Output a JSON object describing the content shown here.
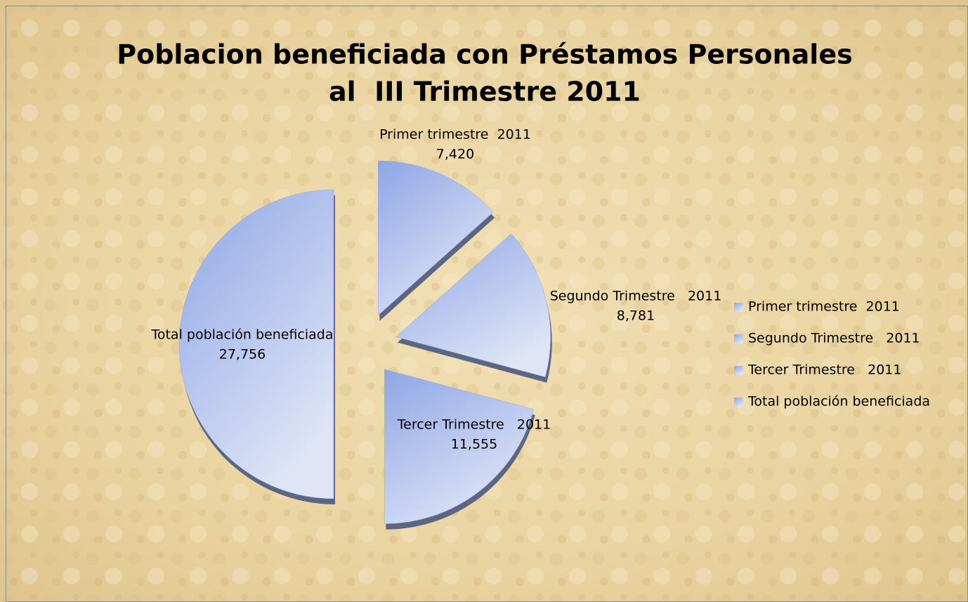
{
  "chart_data": {
    "type": "pie",
    "title": [
      "Poblacion beneficiada con Préstamos Personales",
      "al  III Trimestre 2011"
    ],
    "categories": [
      "Primer trimestre  2011",
      "Segundo Trimestre   2011",
      "Tercer Trimestre   2011",
      "Total población beneficiada"
    ],
    "values": [
      7420,
      8781,
      11555,
      27756
    ],
    "value_labels": [
      "7,420",
      "8,781",
      "11,555",
      "27,756"
    ],
    "color": "#8fa8e8",
    "legend": "right"
  }
}
